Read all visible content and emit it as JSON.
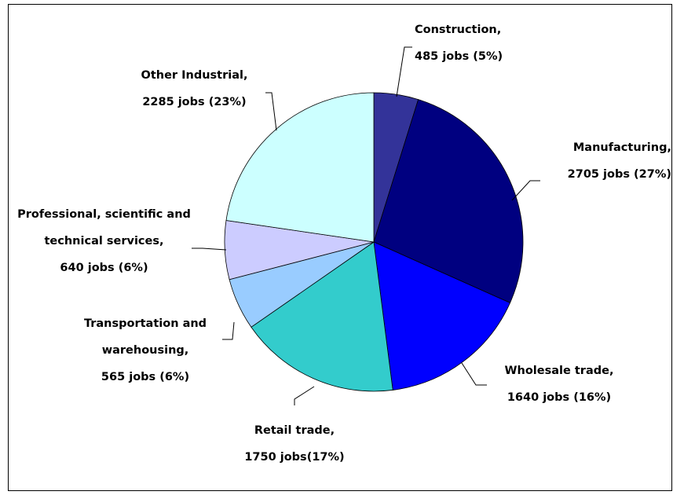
{
  "chart_data": {
    "type": "pie",
    "categories": [
      "Construction,",
      "Manufacturing,",
      "Wholesale trade,",
      "Retail trade,",
      "Transportation and warehousing,",
      "Professional, scientific and technical services,",
      "Other Industrial,"
    ],
    "values": [
      485,
      2705,
      1640,
      1750,
      565,
      640,
      2285
    ],
    "value_labels": [
      "485 jobs (5%)",
      "2705 jobs (27%)",
      "1640 jobs (16%)",
      "1750 jobs(17%)",
      "565 jobs (6%)",
      "640 jobs (6%)",
      "2285 jobs (23%)"
    ],
    "colors": [
      "#333399",
      "#000080",
      "#0000ff",
      "#33cccc",
      "#99ccff",
      "#ccccff",
      "#ccffff"
    ]
  }
}
